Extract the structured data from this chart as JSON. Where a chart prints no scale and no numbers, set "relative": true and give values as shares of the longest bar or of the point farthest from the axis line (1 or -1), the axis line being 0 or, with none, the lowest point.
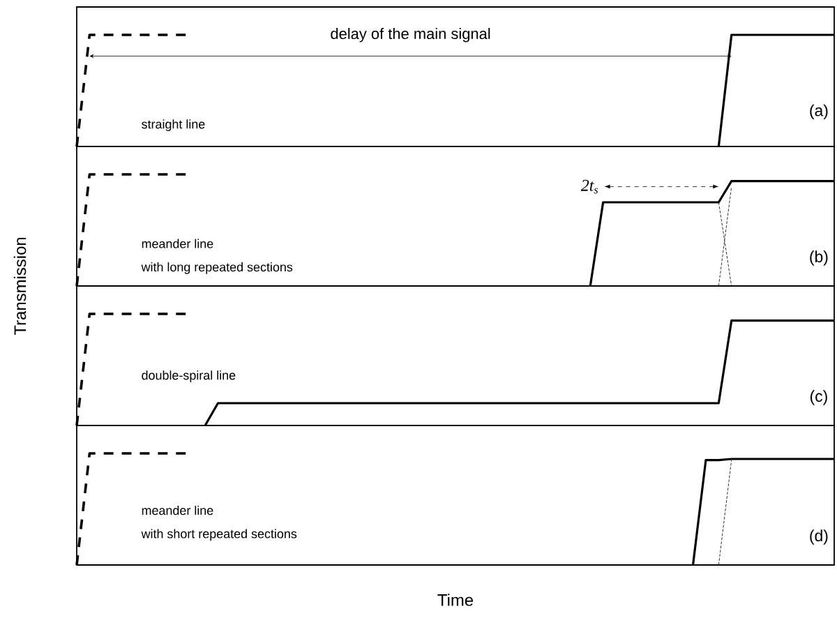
{
  "chart_data": [
    {
      "type": "line",
      "relative": true,
      "categories": [
        null,
        null,
        null,
        null,
        null,
        null,
        null,
        null,
        null,
        null,
        null,
        null,
        null,
        null,
        null,
        null,
        null,
        null,
        null,
        null,
        null,
        null,
        null,
        null,
        null,
        null,
        null,
        null,
        null,
        null,
        null,
        null,
        null,
        null,
        null,
        null,
        null,
        null,
        null,
        null,
        null,
        null,
        null,
        null,
        null,
        null,
        null,
        null,
        null,
        null,
        null,
        null,
        null,
        null,
        null,
        null,
        null,
        null,
        null,
        null
      ],
      "series": [
        {
          "color": "#000000",
          "line_style": "dashed",
          "values": [
            0,
            1,
            1,
            1,
            1,
            1,
            1,
            1,
            1,
            1,
            null,
            null,
            null,
            null,
            null,
            null,
            null,
            null,
            null,
            null,
            null,
            null,
            null,
            null,
            null,
            null,
            null,
            null,
            null,
            null,
            null,
            null,
            null,
            null,
            null,
            null,
            null,
            null,
            null,
            null,
            null,
            null,
            null,
            null,
            null,
            null,
            null,
            null,
            null,
            null,
            null,
            null,
            null,
            null,
            null,
            null,
            null,
            null,
            null,
            null
          ]
        },
        {
          "color": "#000000",
          "line_style": "solid",
          "values": [
            null,
            null,
            null,
            null,
            null,
            null,
            null,
            null,
            null,
            null,
            null,
            null,
            null,
            null,
            null,
            null,
            null,
            null,
            null,
            null,
            null,
            null,
            null,
            null,
            null,
            null,
            null,
            null,
            null,
            null,
            null,
            null,
            null,
            null,
            null,
            null,
            null,
            null,
            null,
            null,
            null,
            null,
            null,
            null,
            null,
            null,
            null,
            null,
            null,
            null,
            0,
            1,
            1,
            1,
            1,
            1,
            1,
            1,
            1,
            1
          ]
        },
        {
          "name": "delay of the main signal",
          "color": "#000000",
          "line_style": "solid",
          "values": [
            null,
            0.81,
            0.81,
            0.81,
            0.81,
            0.81,
            0.81,
            0.81,
            0.81,
            0.81,
            0.81,
            0.81,
            0.81,
            0.81,
            0.81,
            0.81,
            0.81,
            0.81,
            0.81,
            0.81,
            0.81,
            0.81,
            0.81,
            0.81,
            0.81,
            0.81,
            0.81,
            0.81,
            0.81,
            0.81,
            0.81,
            0.81,
            0.81,
            0.81,
            0.81,
            0.81,
            0.81,
            0.81,
            0.81,
            0.81,
            0.81,
            0.81,
            0.81,
            0.81,
            0.81,
            0.81,
            0.81,
            0.81,
            0.81,
            0.81,
            0.81,
            0.81,
            null,
            null,
            null,
            null,
            null,
            null,
            null,
            null
          ]
        }
      ],
      "annotations": [
        "straight line",
        "(a)"
      ]
    },
    {
      "type": "line",
      "relative": true,
      "ylabel": "Transmission",
      "categories": [
        null,
        null,
        null,
        null,
        null,
        null,
        null,
        null,
        null,
        null,
        null,
        null,
        null,
        null,
        null,
        null,
        null,
        null,
        null,
        null,
        null,
        null,
        null,
        null,
        null,
        null,
        null,
        null,
        null,
        null,
        null,
        null,
        null,
        null,
        null,
        null,
        null,
        null,
        null,
        null,
        null,
        null,
        null,
        null,
        null,
        null,
        null,
        null,
        null,
        null,
        null,
        null,
        null,
        null,
        null,
        null,
        null,
        null,
        null,
        null
      ],
      "series": [
        {
          "color": "#000000",
          "line_style": "dashed",
          "values": [
            0,
            1,
            1,
            1,
            1,
            1,
            1,
            1,
            1,
            1,
            null,
            null,
            null,
            null,
            null,
            null,
            null,
            null,
            null,
            null,
            null,
            null,
            null,
            null,
            null,
            null,
            null,
            null,
            null,
            null,
            null,
            null,
            null,
            null,
            null,
            null,
            null,
            null,
            null,
            null,
            null,
            null,
            null,
            null,
            null,
            null,
            null,
            null,
            null,
            null,
            null,
            null,
            null,
            null,
            null,
            null,
            null,
            null,
            null,
            null
          ]
        },
        {
          "color": "#000000",
          "line_style": "solid",
          "values": [
            null,
            null,
            null,
            null,
            null,
            null,
            null,
            null,
            null,
            null,
            null,
            null,
            null,
            null,
            null,
            null,
            null,
            null,
            null,
            null,
            null,
            null,
            null,
            null,
            null,
            null,
            null,
            null,
            null,
            null,
            null,
            null,
            null,
            null,
            null,
            null,
            null,
            null,
            null,
            null,
            0,
            0.75,
            0.75,
            0.75,
            0.75,
            0.75,
            0.75,
            0.75,
            0.75,
            0.75,
            0.75,
            0.94,
            0.94,
            0.94,
            0.94,
            0.94,
            0.94,
            0.94,
            0.94,
            0.94
          ]
        },
        {
          "color": "#000000",
          "line_style": "dotted",
          "values": [
            null,
            null,
            null,
            null,
            null,
            null,
            null,
            null,
            null,
            null,
            null,
            null,
            null,
            null,
            null,
            null,
            null,
            null,
            null,
            null,
            null,
            null,
            null,
            null,
            null,
            null,
            null,
            null,
            null,
            null,
            null,
            null,
            null,
            null,
            null,
            null,
            null,
            null,
            null,
            null,
            null,
            null,
            null,
            null,
            null,
            null,
            null,
            null,
            null,
            null,
            0.75,
            0,
            null,
            null,
            null,
            null,
            null,
            null,
            null,
            null
          ]
        },
        {
          "color": "#000000",
          "line_style": "dotted",
          "values": [
            null,
            null,
            null,
            null,
            null,
            null,
            null,
            null,
            null,
            null,
            null,
            null,
            null,
            null,
            null,
            null,
            null,
            null,
            null,
            null,
            null,
            null,
            null,
            null,
            null,
            null,
            null,
            null,
            null,
            null,
            null,
            null,
            null,
            null,
            null,
            null,
            null,
            null,
            null,
            null,
            null,
            null,
            null,
            null,
            null,
            null,
            null,
            null,
            null,
            null,
            0,
            0.89,
            null,
            null,
            null,
            null,
            null,
            null,
            null,
            null
          ]
        }
      ],
      "annotations": [
        "meander line",
        "with long repeated sections",
        "(b)",
        "2t$_{s}$"
      ]
    },
    {
      "type": "line",
      "relative": true,
      "categories": [
        null,
        null,
        null,
        null,
        null,
        null,
        null,
        null,
        null,
        null,
        null,
        null,
        null,
        null,
        null,
        null,
        null,
        null,
        null,
        null,
        null,
        null,
        null,
        null,
        null,
        null,
        null,
        null,
        null,
        null,
        null,
        null,
        null,
        null,
        null,
        null,
        null,
        null,
        null,
        null,
        null,
        null,
        null,
        null,
        null,
        null,
        null,
        null,
        null,
        null,
        null,
        null,
        null,
        null,
        null,
        null,
        null,
        null,
        null,
        null
      ],
      "series": [
        {
          "color": "#000000",
          "line_style": "dashed",
          "values": [
            0,
            1,
            1,
            1,
            1,
            1,
            1,
            1,
            1,
            1,
            null,
            null,
            null,
            null,
            null,
            null,
            null,
            null,
            null,
            null,
            null,
            null,
            null,
            null,
            null,
            null,
            null,
            null,
            null,
            null,
            null,
            null,
            null,
            null,
            null,
            null,
            null,
            null,
            null,
            null,
            null,
            null,
            null,
            null,
            null,
            null,
            null,
            null,
            null,
            null,
            null,
            null,
            null,
            null,
            null,
            null,
            null,
            null,
            null,
            null
          ]
        },
        {
          "color": "#000000",
          "line_style": "solid",
          "values": [
            null,
            null,
            null,
            null,
            null,
            null,
            null,
            null,
            null,
            null,
            0,
            0.2,
            0.2,
            0.2,
            0.2,
            0.2,
            0.2,
            0.2,
            0.2,
            0.2,
            0.2,
            0.2,
            0.2,
            0.2,
            0.2,
            0.2,
            0.2,
            0.2,
            0.2,
            0.2,
            0.2,
            0.2,
            0.2,
            0.2,
            0.2,
            0.2,
            0.2,
            0.2,
            0.2,
            0.2,
            0.2,
            0.2,
            0.2,
            0.2,
            0.2,
            0.2,
            0.2,
            0.2,
            0.2,
            0.2,
            0.2,
            0.94,
            0.94,
            0.94,
            0.94,
            0.94,
            0.94,
            0.94,
            0.94,
            0.94
          ]
        }
      ],
      "annotations": [
        "double-spiral line",
        "(c)"
      ]
    },
    {
      "type": "line",
      "relative": true,
      "xlabel": "Time",
      "categories": [
        null,
        null,
        null,
        null,
        null,
        null,
        null,
        null,
        null,
        null,
        null,
        null,
        null,
        null,
        null,
        null,
        null,
        null,
        null,
        null,
        null,
        null,
        null,
        null,
        null,
        null,
        null,
        null,
        null,
        null,
        null,
        null,
        null,
        null,
        null,
        null,
        null,
        null,
        null,
        null,
        null,
        null,
        null,
        null,
        null,
        null,
        null,
        null,
        null,
        null,
        null,
        null,
        null,
        null,
        null,
        null,
        null,
        null,
        null,
        null
      ],
      "series": [
        {
          "color": "#000000",
          "line_style": "dashed",
          "values": [
            0,
            1,
            1,
            1,
            1,
            1,
            1,
            1,
            1,
            1,
            null,
            null,
            null,
            null,
            null,
            null,
            null,
            null,
            null,
            null,
            null,
            null,
            null,
            null,
            null,
            null,
            null,
            null,
            null,
            null,
            null,
            null,
            null,
            null,
            null,
            null,
            null,
            null,
            null,
            null,
            null,
            null,
            null,
            null,
            null,
            null,
            null,
            null,
            null,
            null,
            null,
            null,
            null,
            null,
            null,
            null,
            null,
            null,
            null,
            null
          ]
        },
        {
          "color": "#000000",
          "line_style": "solid",
          "values": [
            null,
            null,
            null,
            null,
            null,
            null,
            null,
            null,
            null,
            null,
            null,
            null,
            null,
            null,
            null,
            null,
            null,
            null,
            null,
            null,
            null,
            null,
            null,
            null,
            null,
            null,
            null,
            null,
            null,
            null,
            null,
            null,
            null,
            null,
            null,
            null,
            null,
            null,
            null,
            null,
            null,
            null,
            null,
            null,
            null,
            null,
            null,
            null,
            0,
            0.94,
            0.94,
            0.95,
            0.95,
            0.95,
            0.95,
            0.95,
            0.95,
            0.95,
            0.95,
            0.95
          ]
        },
        {
          "color": "#000000",
          "line_style": "dotted",
          "values": [
            null,
            null,
            null,
            null,
            null,
            null,
            null,
            null,
            null,
            null,
            null,
            null,
            null,
            null,
            null,
            null,
            null,
            null,
            null,
            null,
            null,
            null,
            null,
            null,
            null,
            null,
            null,
            null,
            null,
            null,
            null,
            null,
            null,
            null,
            null,
            null,
            null,
            null,
            null,
            null,
            null,
            null,
            null,
            null,
            null,
            null,
            null,
            null,
            null,
            null,
            0,
            0.94,
            null,
            null,
            null,
            null,
            null,
            null,
            null,
            null
          ]
        }
      ],
      "annotations": [
        "meander line",
        "with short repeated sections",
        "(d)"
      ]
    }
  ]
}
